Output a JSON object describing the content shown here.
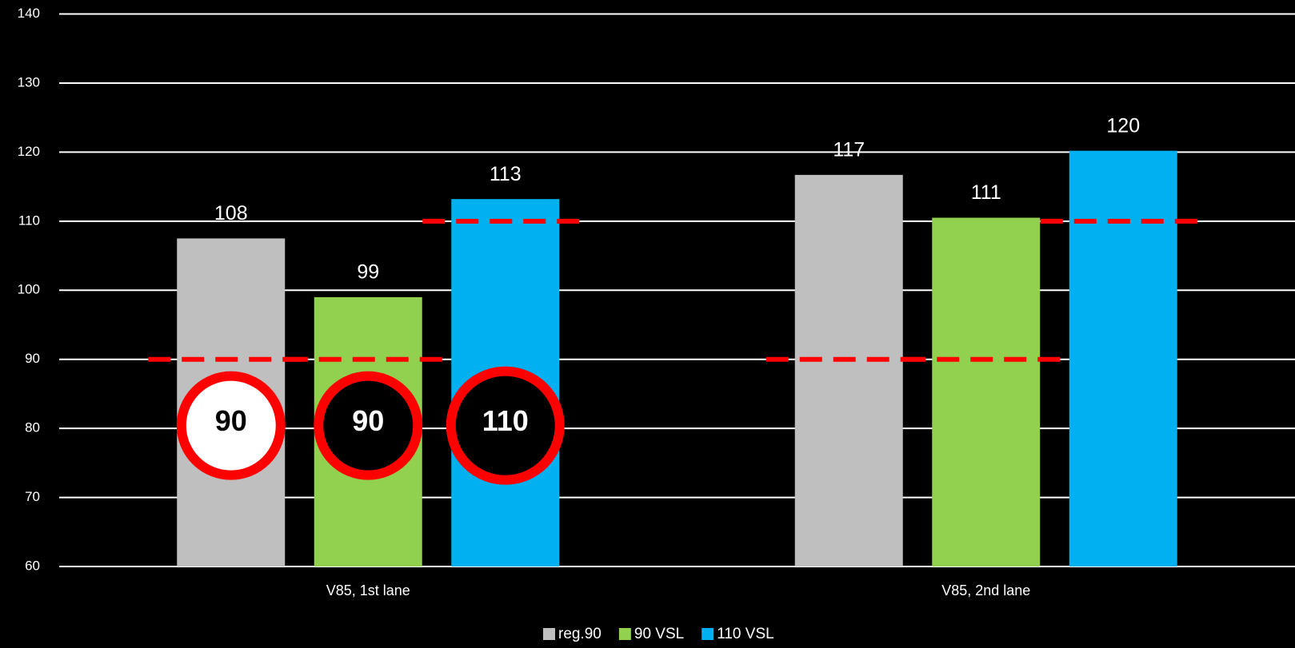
{
  "chart_data": {
    "type": "bar",
    "categories": [
      "V85, 1st lane",
      "V85, 2nd lane"
    ],
    "series": [
      {
        "name": "reg.90",
        "color": "#bfbfbf",
        "values": [
          107.5,
          116.7
        ],
        "value_labels": [
          "108",
          "117"
        ],
        "limit": 90
      },
      {
        "name": "90 VSL",
        "color": "#92d050",
        "values": [
          99,
          110.5
        ],
        "value_labels": [
          "99",
          "111"
        ],
        "limit": 90
      },
      {
        "name": "110 VSL",
        "color": "#00b0f0",
        "values": [
          113.2,
          120.2
        ],
        "value_labels": [
          "113",
          "120"
        ],
        "limit": 110
      }
    ],
    "limit_color": "#ff0000",
    "signs": [
      {
        "label": "90",
        "fill": "#ffffff",
        "text_color": "#000000"
      },
      {
        "label": "90",
        "fill": "#000000",
        "text_color": "#ffffff"
      },
      {
        "label": "110",
        "fill": "#000000",
        "text_color": "#ffffff"
      }
    ],
    "sign_border": "#ff0000",
    "ylim": [
      60,
      140
    ],
    "yticks": [
      60,
      70,
      80,
      90,
      100,
      110,
      120,
      130,
      140
    ],
    "grid": true,
    "legend": "bottom"
  }
}
